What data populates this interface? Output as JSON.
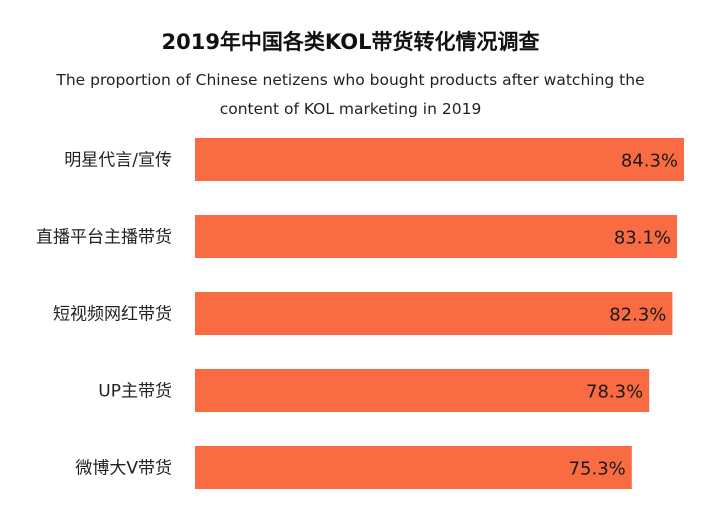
{
  "chart_data": {
    "type": "bar",
    "orientation": "horizontal",
    "title": "2019年中国各类KOL带货转化情况调查",
    "subtitle": "The proportion of Chinese netizens who bought products after watching the content of KOL marketing in 2019",
    "categories": [
      "明星代言/宣传",
      "直播平台主播带货",
      "短视频网红带货",
      "UP主带货",
      "微博大V带货"
    ],
    "values": [
      84.3,
      83.1,
      82.3,
      78.3,
      75.3
    ],
    "value_labels": [
      "84.3%",
      "83.1%",
      "82.3%",
      "78.3%",
      "75.3%"
    ],
    "unit": "%",
    "bar_color": "#F96C43",
    "grid": false,
    "legend": "none"
  }
}
